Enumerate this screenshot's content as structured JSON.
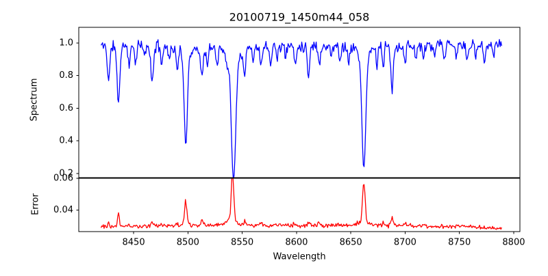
{
  "chart_data": {
    "type": "line",
    "title": "20100719_1450m44_058",
    "xlabel": "Wavelength",
    "xlim": [
      8399.5,
      8805.7
    ],
    "x_ticks": [
      {
        "value": 8450,
        "label": "8450"
      },
      {
        "value": 8500,
        "label": "8500"
      },
      {
        "value": 8550,
        "label": "8550"
      },
      {
        "value": 8600,
        "label": "8600"
      },
      {
        "value": 8650,
        "label": "8650"
      },
      {
        "value": 8700,
        "label": "8700"
      },
      {
        "value": 8750,
        "label": "8750"
      },
      {
        "value": 8800,
        "label": "8800"
      }
    ],
    "x_start": 8420,
    "x_end": 8789,
    "panels": [
      {
        "name": "spectrum",
        "ylabel": "Spectrum",
        "color": "#0000ff",
        "ylim": [
          0.175,
          1.0958
        ],
        "y_ticks": [
          {
            "value": 1.0,
            "label": "1.0"
          },
          {
            "value": 0.8,
            "label": "0.8"
          },
          {
            "value": 0.6,
            "label": "0.6"
          },
          {
            "value": 0.4,
            "label": "0.4"
          },
          {
            "value": 0.2,
            "label": "0.2"
          }
        ],
        "continuum": 0.985,
        "noise_amplitude": 0.045,
        "absorption_lines": [
          [
            8427,
            0.205,
            1.2,
            0,
            0
          ],
          [
            8436,
            0.345,
            1.3,
            0,
            0
          ],
          [
            8446,
            0.12,
            1.0,
            0,
            0
          ],
          [
            8452,
            0.1,
            0.9,
            0,
            0
          ],
          [
            8460,
            0.07,
            0.8,
            0,
            0
          ],
          [
            8467,
            0.225,
            1.2,
            0,
            0
          ],
          [
            8476,
            0.1,
            0.9,
            0,
            0
          ],
          [
            8483,
            0.07,
            0.8,
            0,
            0
          ],
          [
            8490,
            0.13,
            0.9,
            0,
            0
          ],
          [
            8498,
            0.555,
            1.5,
            0.05,
            7
          ],
          [
            8513,
            0.175,
            1.2,
            0,
            0
          ],
          [
            8518,
            0.12,
            0.9,
            0,
            0
          ],
          [
            8527,
            0.1,
            0.9,
            0,
            0
          ],
          [
            8536,
            0.08,
            0.9,
            0,
            0
          ],
          [
            8542,
            0.765,
            2.0,
            0.06,
            9
          ],
          [
            8552,
            0.15,
            1.0,
            0,
            0
          ],
          [
            8560,
            0.08,
            0.8,
            0,
            0
          ],
          [
            8567,
            0.11,
            0.9,
            0,
            0
          ],
          [
            8576,
            0.1,
            0.8,
            0,
            0
          ],
          [
            8582,
            0.08,
            0.8,
            0,
            0
          ],
          [
            8590,
            0.07,
            0.8,
            0,
            0
          ],
          [
            8599,
            0.12,
            0.9,
            0,
            0
          ],
          [
            8611,
            0.175,
            1.1,
            0,
            0
          ],
          [
            8621,
            0.12,
            0.9,
            0,
            0
          ],
          [
            8632,
            0.07,
            0.8,
            0,
            0
          ],
          [
            8640,
            0.08,
            0.8,
            0,
            0
          ],
          [
            8648,
            0.1,
            0.8,
            0,
            0
          ],
          [
            8662,
            0.705,
            1.8,
            0.05,
            8
          ],
          [
            8674,
            0.1,
            0.8,
            0,
            0
          ],
          [
            8680,
            0.12,
            0.8,
            0,
            0
          ],
          [
            8688,
            0.28,
            1.1,
            0,
            0
          ],
          [
            8700,
            0.11,
            0.8,
            0,
            0
          ],
          [
            8710,
            0.08,
            0.8,
            0,
            0
          ],
          [
            8717,
            0.1,
            0.8,
            0,
            0
          ],
          [
            8727,
            0.07,
            0.8,
            0,
            0
          ],
          [
            8736,
            0.09,
            0.8,
            0,
            0
          ],
          [
            8747,
            0.07,
            0.8,
            0,
            0
          ],
          [
            8757,
            0.1,
            0.8,
            0,
            0
          ],
          [
            8765,
            0.07,
            0.8,
            0,
            0
          ],
          [
            8773,
            0.08,
            0.8,
            0,
            0
          ],
          [
            8781,
            0.06,
            0.8,
            0,
            0
          ]
        ]
      },
      {
        "name": "error",
        "ylabel": "Error",
        "color": "#ff0000",
        "ylim": [
          0.02645,
          0.06043
        ],
        "y_ticks": [
          {
            "value": 0.06,
            "label": "0.06"
          },
          {
            "value": 0.04,
            "label": "0.04"
          }
        ],
        "base_points": [
          [
            8420,
            0.0297
          ],
          [
            8500,
            0.0302
          ],
          [
            8600,
            0.0303
          ],
          [
            8700,
            0.03
          ],
          [
            8760,
            0.0294
          ],
          [
            8789,
            0.0284
          ]
        ],
        "noise_amplitude": 0.0016,
        "spikes": [
          [
            8427,
            0.0028,
            0.8,
            0,
            0
          ],
          [
            8436,
            0.0085,
            0.8,
            0,
            0
          ],
          [
            8446,
            0.0015,
            0.8,
            0,
            0
          ],
          [
            8467,
            0.0028,
            0.9,
            0,
            0
          ],
          [
            8490,
            0.0015,
            0.8,
            0,
            0
          ],
          [
            8498,
            0.0145,
            1.0,
            0.001,
            4
          ],
          [
            8513,
            0.0028,
            0.9,
            0,
            0
          ],
          [
            8541,
            0.0285,
            1.1,
            0.004,
            5
          ],
          [
            8552,
            0.0018,
            0.8,
            0,
            0
          ],
          [
            8567,
            0.0012,
            0.8,
            0,
            0
          ],
          [
            8598,
            0.0014,
            0.8,
            0,
            0
          ],
          [
            8611,
            0.002,
            0.9,
            0,
            0
          ],
          [
            8621,
            0.0014,
            0.8,
            0,
            0
          ],
          [
            8662,
            0.0245,
            1.1,
            0.0035,
            5
          ],
          [
            8680,
            0.0016,
            0.8,
            0,
            0
          ],
          [
            8688,
            0.005,
            0.9,
            0,
            0
          ],
          [
            8700,
            0.0012,
            0.8,
            0,
            0
          ],
          [
            8717,
            0.0012,
            0.8,
            0,
            0
          ],
          [
            8757,
            0.001,
            0.8,
            0,
            0
          ]
        ]
      }
    ]
  }
}
